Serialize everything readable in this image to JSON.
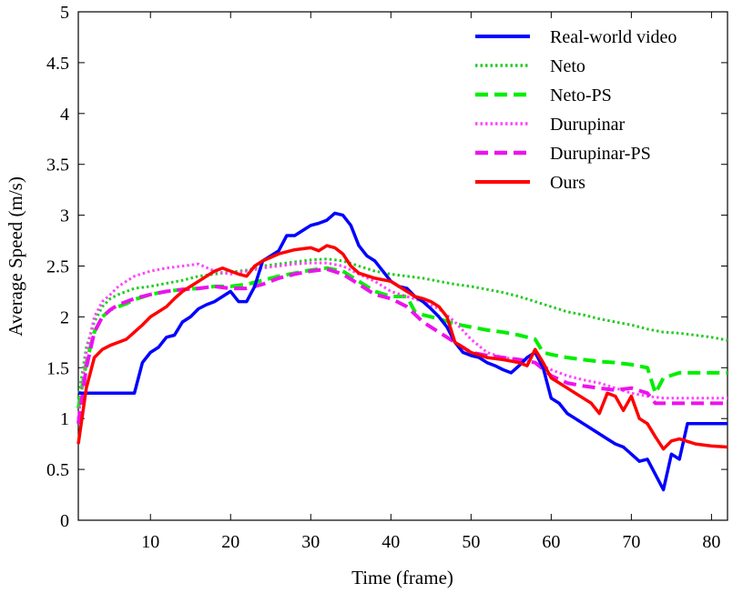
{
  "chart_data": {
    "type": "line",
    "title": "",
    "xlabel": "Time (frame)",
    "ylabel": "Average Speed (m/s)",
    "xlim": [
      1,
      82
    ],
    "ylim": [
      0,
      5
    ],
    "xticks": [
      10,
      20,
      30,
      40,
      50,
      60,
      70,
      80
    ],
    "xtick_labels": [
      "10",
      "20",
      "30",
      "40",
      "50",
      "60",
      "70",
      "80"
    ],
    "yticks": [
      0,
      0.5,
      1,
      1.5,
      2,
      2.5,
      3,
      3.5,
      4,
      4.5,
      5
    ],
    "ytick_labels": [
      "0",
      "0.5",
      "1",
      "1.5",
      "2",
      "2.5",
      "3",
      "3.5",
      "4",
      "4.5",
      "5"
    ],
    "legend_position": "top-right",
    "grid": false,
    "series": [
      {
        "name": "Real-world video",
        "color": "#0000ff",
        "dash": "solid",
        "x": [
          1,
          2,
          4,
          6,
          8,
          9,
          10,
          11,
          12,
          13,
          14,
          15,
          16,
          17,
          18,
          19,
          20,
          21,
          22,
          23,
          24,
          25,
          26,
          27,
          28,
          29,
          30,
          31,
          32,
          33,
          34,
          35,
          36,
          37,
          38,
          39,
          40,
          41,
          42,
          43,
          44,
          45,
          46,
          47,
          48,
          49,
          50,
          51,
          52,
          53,
          54,
          55,
          56,
          57,
          58,
          59,
          60,
          61,
          62,
          63,
          64,
          65,
          66,
          67,
          68,
          69,
          70,
          71,
          72,
          73,
          74,
          75,
          76,
          77,
          78,
          80,
          82
        ],
        "values": [
          1.25,
          1.25,
          1.25,
          1.25,
          1.25,
          1.55,
          1.65,
          1.7,
          1.8,
          1.82,
          1.95,
          2.0,
          2.08,
          2.12,
          2.15,
          2.2,
          2.25,
          2.15,
          2.15,
          2.3,
          2.55,
          2.6,
          2.65,
          2.8,
          2.8,
          2.85,
          2.9,
          2.92,
          2.95,
          3.02,
          3.0,
          2.9,
          2.7,
          2.6,
          2.55,
          2.45,
          2.35,
          2.3,
          2.28,
          2.2,
          2.15,
          2.08,
          2.0,
          1.9,
          1.75,
          1.65,
          1.62,
          1.6,
          1.55,
          1.52,
          1.48,
          1.45,
          1.52,
          1.6,
          1.65,
          1.5,
          1.2,
          1.15,
          1.05,
          1.0,
          0.95,
          0.9,
          0.85,
          0.8,
          0.75,
          0.72,
          0.65,
          0.58,
          0.6,
          0.45,
          0.3,
          0.65,
          0.6,
          0.95,
          0.95,
          0.95,
          0.95
        ]
      },
      {
        "name": "Neto",
        "color": "#22cc22",
        "dash": "dotted",
        "x": [
          1,
          2,
          3,
          4,
          5,
          6,
          7,
          8,
          10,
          12,
          14,
          16,
          18,
          20,
          22,
          24,
          26,
          28,
          30,
          32,
          34,
          36,
          38,
          40,
          42,
          44,
          46,
          48,
          50,
          52,
          54,
          56,
          58,
          60,
          62,
          64,
          66,
          68,
          70,
          72,
          74,
          76,
          78,
          80,
          82
        ],
        "values": [
          1.2,
          1.7,
          1.95,
          2.1,
          2.18,
          2.22,
          2.25,
          2.28,
          2.3,
          2.33,
          2.36,
          2.4,
          2.42,
          2.44,
          2.46,
          2.5,
          2.52,
          2.54,
          2.56,
          2.57,
          2.55,
          2.5,
          2.45,
          2.42,
          2.4,
          2.38,
          2.35,
          2.32,
          2.3,
          2.27,
          2.24,
          2.2,
          2.15,
          2.1,
          2.05,
          2.02,
          1.98,
          1.95,
          1.92,
          1.88,
          1.85,
          1.84,
          1.82,
          1.8,
          1.77
        ]
      },
      {
        "name": "Neto-PS",
        "color": "#00ee00",
        "dash": "dashed",
        "x": [
          1,
          2,
          3,
          4,
          5,
          6,
          7,
          8,
          10,
          12,
          14,
          16,
          18,
          20,
          22,
          24,
          26,
          28,
          30,
          32,
          34,
          36,
          38,
          40,
          42,
          43,
          44,
          46,
          48,
          50,
          52,
          54,
          56,
          58,
          59,
          60,
          62,
          64,
          66,
          68,
          70,
          72,
          73,
          74,
          76,
          78,
          80,
          82
        ],
        "values": [
          1.1,
          1.55,
          1.85,
          2.0,
          2.07,
          2.1,
          2.13,
          2.17,
          2.22,
          2.25,
          2.27,
          2.28,
          2.3,
          2.3,
          2.32,
          2.36,
          2.4,
          2.43,
          2.46,
          2.48,
          2.45,
          2.35,
          2.25,
          2.2,
          2.2,
          2.05,
          2.02,
          1.98,
          1.93,
          1.9,
          1.87,
          1.85,
          1.82,
          1.78,
          1.65,
          1.63,
          1.6,
          1.58,
          1.56,
          1.55,
          1.53,
          1.5,
          1.25,
          1.4,
          1.45,
          1.45,
          1.45,
          1.45
        ]
      },
      {
        "name": "Durupinar",
        "color": "#ff44ff",
        "dash": "dotted",
        "x": [
          1,
          2,
          3,
          4,
          5,
          6,
          8,
          10,
          12,
          14,
          16,
          18,
          20,
          22,
          24,
          26,
          28,
          30,
          32,
          34,
          36,
          38,
          40,
          42,
          44,
          46,
          48,
          50,
          52,
          54,
          56,
          58,
          60,
          62,
          64,
          66,
          68,
          70,
          72,
          74,
          76,
          78,
          80,
          82
        ],
        "values": [
          1.0,
          1.65,
          2.0,
          2.15,
          2.22,
          2.3,
          2.4,
          2.45,
          2.48,
          2.5,
          2.52,
          2.45,
          2.42,
          2.45,
          2.48,
          2.5,
          2.52,
          2.53,
          2.53,
          2.5,
          2.42,
          2.35,
          2.25,
          2.2,
          2.15,
          2.08,
          1.95,
          1.78,
          1.65,
          1.6,
          1.58,
          1.55,
          1.48,
          1.42,
          1.38,
          1.35,
          1.3,
          1.25,
          1.22,
          1.2,
          1.2,
          1.2,
          1.2,
          1.2
        ]
      },
      {
        "name": "Durupinar-PS",
        "color": "#ee11ee",
        "dash": "dashed",
        "x": [
          1,
          2,
          3,
          4,
          5,
          6,
          8,
          10,
          12,
          14,
          16,
          18,
          20,
          22,
          24,
          26,
          28,
          30,
          32,
          34,
          36,
          38,
          40,
          42,
          44,
          46,
          48,
          50,
          52,
          54,
          56,
          58,
          60,
          62,
          64,
          66,
          68,
          70,
          72,
          73,
          74,
          76,
          78,
          80,
          82
        ],
        "values": [
          0.95,
          1.5,
          1.85,
          2.0,
          2.07,
          2.12,
          2.18,
          2.22,
          2.25,
          2.27,
          2.28,
          2.3,
          2.28,
          2.28,
          2.32,
          2.38,
          2.42,
          2.45,
          2.47,
          2.42,
          2.32,
          2.22,
          2.18,
          2.1,
          1.95,
          1.85,
          1.75,
          1.65,
          1.62,
          1.6,
          1.58,
          1.55,
          1.42,
          1.35,
          1.32,
          1.3,
          1.28,
          1.3,
          1.25,
          1.15,
          1.15,
          1.15,
          1.15,
          1.15,
          1.15
        ]
      },
      {
        "name": "Ours",
        "color": "#ff0000",
        "dash": "solid",
        "x": [
          1,
          2,
          3,
          4,
          5,
          6,
          7,
          8,
          9,
          10,
          11,
          12,
          13,
          14,
          15,
          16,
          17,
          18,
          19,
          20,
          21,
          22,
          23,
          24,
          26,
          28,
          30,
          31,
          32,
          33,
          34,
          35,
          36,
          38,
          40,
          41,
          42,
          43,
          44,
          45,
          46,
          47,
          48,
          50,
          52,
          54,
          56,
          57,
          58,
          59,
          60,
          62,
          64,
          65,
          66,
          67,
          68,
          69,
          70,
          71,
          72,
          73,
          74,
          75,
          76,
          78,
          80,
          82
        ],
        "values": [
          0.75,
          1.3,
          1.6,
          1.68,
          1.72,
          1.75,
          1.78,
          1.85,
          1.92,
          2.0,
          2.05,
          2.1,
          2.18,
          2.25,
          2.3,
          2.35,
          2.4,
          2.45,
          2.48,
          2.45,
          2.42,
          2.4,
          2.5,
          2.55,
          2.62,
          2.66,
          2.68,
          2.65,
          2.7,
          2.68,
          2.62,
          2.5,
          2.43,
          2.38,
          2.35,
          2.3,
          2.25,
          2.2,
          2.18,
          2.15,
          2.1,
          2.0,
          1.75,
          1.65,
          1.6,
          1.58,
          1.55,
          1.52,
          1.68,
          1.55,
          1.4,
          1.3,
          1.2,
          1.15,
          1.05,
          1.25,
          1.22,
          1.08,
          1.22,
          1.0,
          0.95,
          0.82,
          0.7,
          0.78,
          0.8,
          0.75,
          0.73,
          0.72
        ]
      }
    ]
  }
}
